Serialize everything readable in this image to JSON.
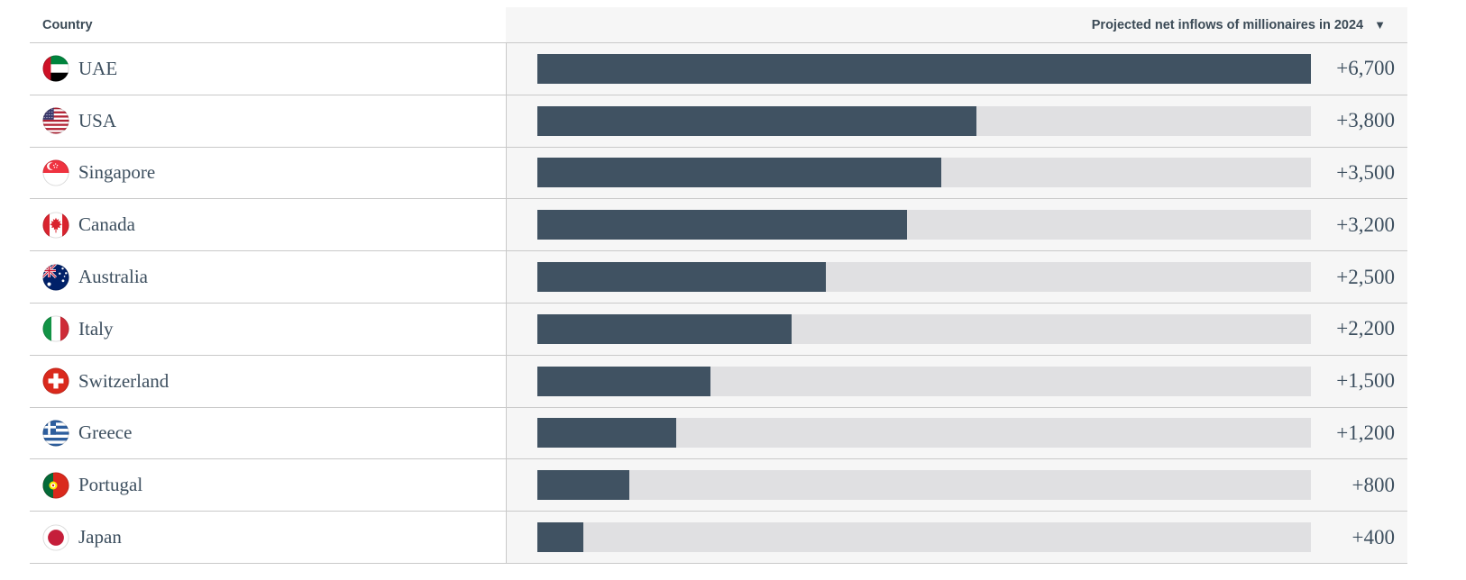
{
  "chart_data": {
    "type": "bar",
    "orientation": "horizontal",
    "title": "Projected net inflows of millionaires in 2024",
    "categories": [
      "UAE",
      "USA",
      "Singapore",
      "Canada",
      "Australia",
      "Italy",
      "Switzerland",
      "Greece",
      "Portugal",
      "Japan"
    ],
    "values": [
      6700,
      3800,
      3500,
      3200,
      2500,
      2200,
      1500,
      1200,
      800,
      400
    ],
    "value_labels": [
      "+6,700",
      "+3,800",
      "+3,500",
      "+3,200",
      "+2,500",
      "+2,200",
      "+1,500",
      "+1,200",
      "+800",
      "+400"
    ],
    "flag_icons": [
      "uae-flag",
      "usa-flag",
      "singapore-flag",
      "canada-flag",
      "australia-flag",
      "italy-flag",
      "switzerland-flag",
      "greece-flag",
      "portugal-flag",
      "japan-flag"
    ],
    "xlim": [
      0,
      6700
    ],
    "sort_order": "descending",
    "grid": false,
    "legend": "none"
  },
  "table": {
    "country_header": "Country",
    "value_header": "Projected net inflows of millionaires in 2024",
    "sort_icon": "▼"
  },
  "colors": {
    "bar_fill": "#405262",
    "bar_track": "#e0e0e2",
    "value_column_bg": "#f6f6f6",
    "row_divider": "#c9c9c9",
    "text": "#3d4f5f",
    "header_text": "#3b4a56"
  }
}
